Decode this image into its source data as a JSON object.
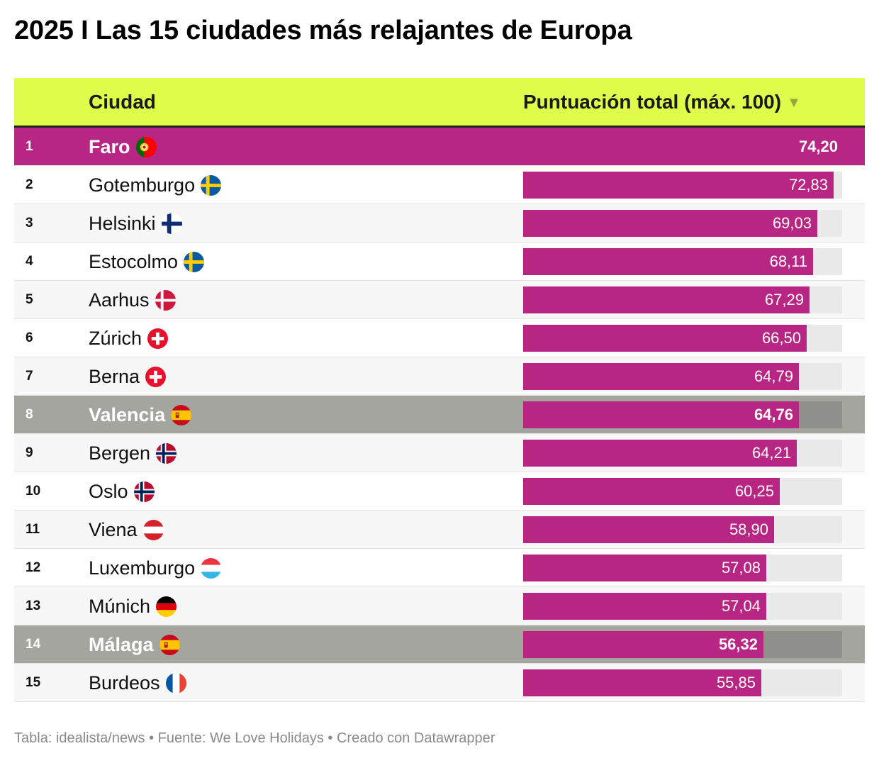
{
  "title": "2025 I Las 15 ciudades más relajantes de Europa",
  "header": {
    "city": "Ciudad",
    "score": "Puntuación total (máx. 100)",
    "sort_glyph": "▼"
  },
  "colors": {
    "header_bg": "#dffc4a",
    "bar": "#b72683",
    "highlight_spain": "#a5a5a0",
    "track": "#e9e9e9"
  },
  "chart_data": {
    "type": "table",
    "title": "2025 I Las 15 ciudades más relajantes de Europa",
    "columns": [
      "Ciudad",
      "Puntuación total (máx. 100)"
    ],
    "max": 100,
    "rows": [
      {
        "rank": "1",
        "city": "Faro",
        "value": 74.2,
        "label": "74,20",
        "flag": "portugal-flag-icon",
        "highlight": "top"
      },
      {
        "rank": "2",
        "city": "Gotemburgo",
        "value": 72.83,
        "label": "72,83",
        "flag": "sweden-flag-icon",
        "highlight": "none"
      },
      {
        "rank": "3",
        "city": "Helsinki",
        "value": 69.03,
        "label": "69,03",
        "flag": "finland-flag-icon",
        "highlight": "none"
      },
      {
        "rank": "4",
        "city": "Estocolmo",
        "value": 68.11,
        "label": "68,11",
        "flag": "sweden-flag-icon",
        "highlight": "none"
      },
      {
        "rank": "5",
        "city": "Aarhus",
        "value": 67.29,
        "label": "67,29",
        "flag": "denmark-flag-icon",
        "highlight": "none"
      },
      {
        "rank": "6",
        "city": "Zúrich",
        "value": 66.5,
        "label": "66,50",
        "flag": "switzerland-flag-icon",
        "highlight": "none"
      },
      {
        "rank": "7",
        "city": "Berna",
        "value": 64.79,
        "label": "64,79",
        "flag": "switzerland-flag-icon",
        "highlight": "none"
      },
      {
        "rank": "8",
        "city": "Valencia",
        "value": 64.76,
        "label": "64,76",
        "flag": "spain-flag-icon",
        "highlight": "spain"
      },
      {
        "rank": "9",
        "city": "Bergen",
        "value": 64.21,
        "label": "64,21",
        "flag": "norway-flag-icon",
        "highlight": "none"
      },
      {
        "rank": "10",
        "city": "Oslo",
        "value": 60.25,
        "label": "60,25",
        "flag": "norway-flag-icon",
        "highlight": "none"
      },
      {
        "rank": "11",
        "city": "Viena",
        "value": 58.9,
        "label": "58,90",
        "flag": "austria-flag-icon",
        "highlight": "none"
      },
      {
        "rank": "12",
        "city": "Luxemburgo",
        "value": 57.08,
        "label": "57,08",
        "flag": "luxembourg-flag-icon",
        "highlight": "none"
      },
      {
        "rank": "13",
        "city": "Múnich",
        "value": 57.04,
        "label": "57,04",
        "flag": "germany-flag-icon",
        "highlight": "none"
      },
      {
        "rank": "14",
        "city": "Málaga",
        "value": 56.32,
        "label": "56,32",
        "flag": "spain-flag-icon",
        "highlight": "spain"
      },
      {
        "rank": "15",
        "city": "Burdeos",
        "value": 55.85,
        "label": "55,85",
        "flag": "france-flag-icon",
        "highlight": "none"
      }
    ]
  },
  "footer": "Tabla: idealista/news • Fuente: We Love Holidays • Creado con Datawrapper"
}
